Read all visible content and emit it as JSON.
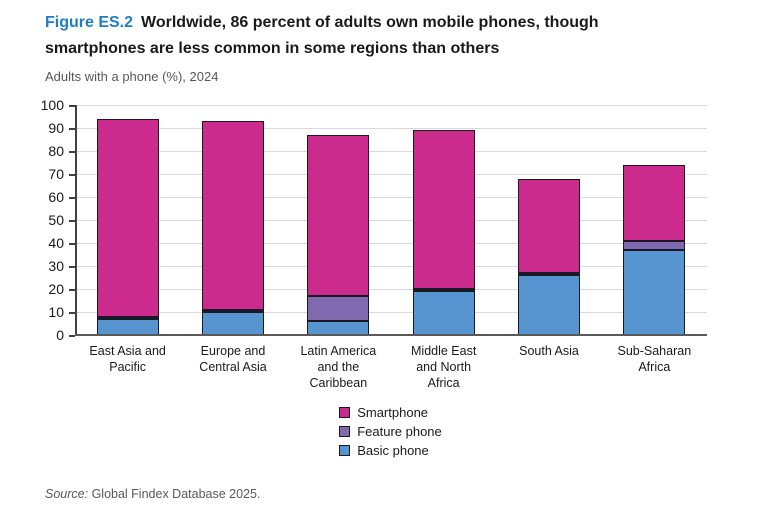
{
  "header": {
    "figure_label": "Figure ES.2",
    "title_line1": "Worldwide, 86 percent of adults own mobile phones, though",
    "title_line2": "smartphones are less common in some regions than others",
    "subtitle": "Adults with a phone (%), 2024"
  },
  "source": {
    "label": "Source:",
    "text": " Global Findex Database 2025."
  },
  "colors": {
    "figure_label_blue": "#1f7ec3",
    "title_text": "#1a1a1a",
    "subtitle_gray": "#595959",
    "smartphone": "#cc2b8e",
    "feature_phone": "#8069ae",
    "basic_phone": "#5795d0",
    "bar_border": "#1a1a26",
    "gridline": "#d9d9d9",
    "axis": "#404040"
  },
  "legend": {
    "items": [
      {
        "label": "Smartphone",
        "color": "#cc2b8e"
      },
      {
        "label": "Feature phone",
        "color": "#8069ae"
      },
      {
        "label": "Basic phone",
        "color": "#5795d0"
      }
    ]
  },
  "chart_data": {
    "type": "bar",
    "stacked": true,
    "title": "Worldwide, 86 percent of adults own mobile phones, though smartphones are less common in some regions than others",
    "subtitle": "Adults with a phone (%), 2024",
    "xlabel": "",
    "ylabel": "Adults with a phone (%)",
    "ylim": [
      0,
      100
    ],
    "ytick_interval": 10,
    "grid": true,
    "legend_position": "bottom-center",
    "categories": [
      "East Asia and Pacific",
      "Europe and Central Asia",
      "Latin America and the Caribbean",
      "Middle East and North Africa",
      "South Asia",
      "Sub-Saharan Africa"
    ],
    "category_label_lines": [
      [
        "East Asia and",
        "Pacific"
      ],
      [
        "Europe and",
        "Central Asia"
      ],
      [
        "Latin America",
        "and the",
        "Caribbean"
      ],
      [
        "Middle East",
        "and North",
        "Africa"
      ],
      [
        "South Asia"
      ],
      [
        "Sub-Saharan",
        "Africa"
      ]
    ],
    "series": [
      {
        "name": "Basic phone",
        "color": "#5795d0",
        "values": [
          7,
          10,
          6,
          19,
          26,
          37
        ]
      },
      {
        "name": "Feature phone",
        "color": "#8069ae",
        "values": [
          1,
          1,
          11,
          1,
          1,
          4
        ]
      },
      {
        "name": "Smartphone",
        "color": "#cc2b8e",
        "values": [
          86,
          82,
          70,
          69,
          41,
          33
        ]
      }
    ],
    "totals": [
      94,
      93,
      87,
      89,
      68,
      74
    ]
  }
}
